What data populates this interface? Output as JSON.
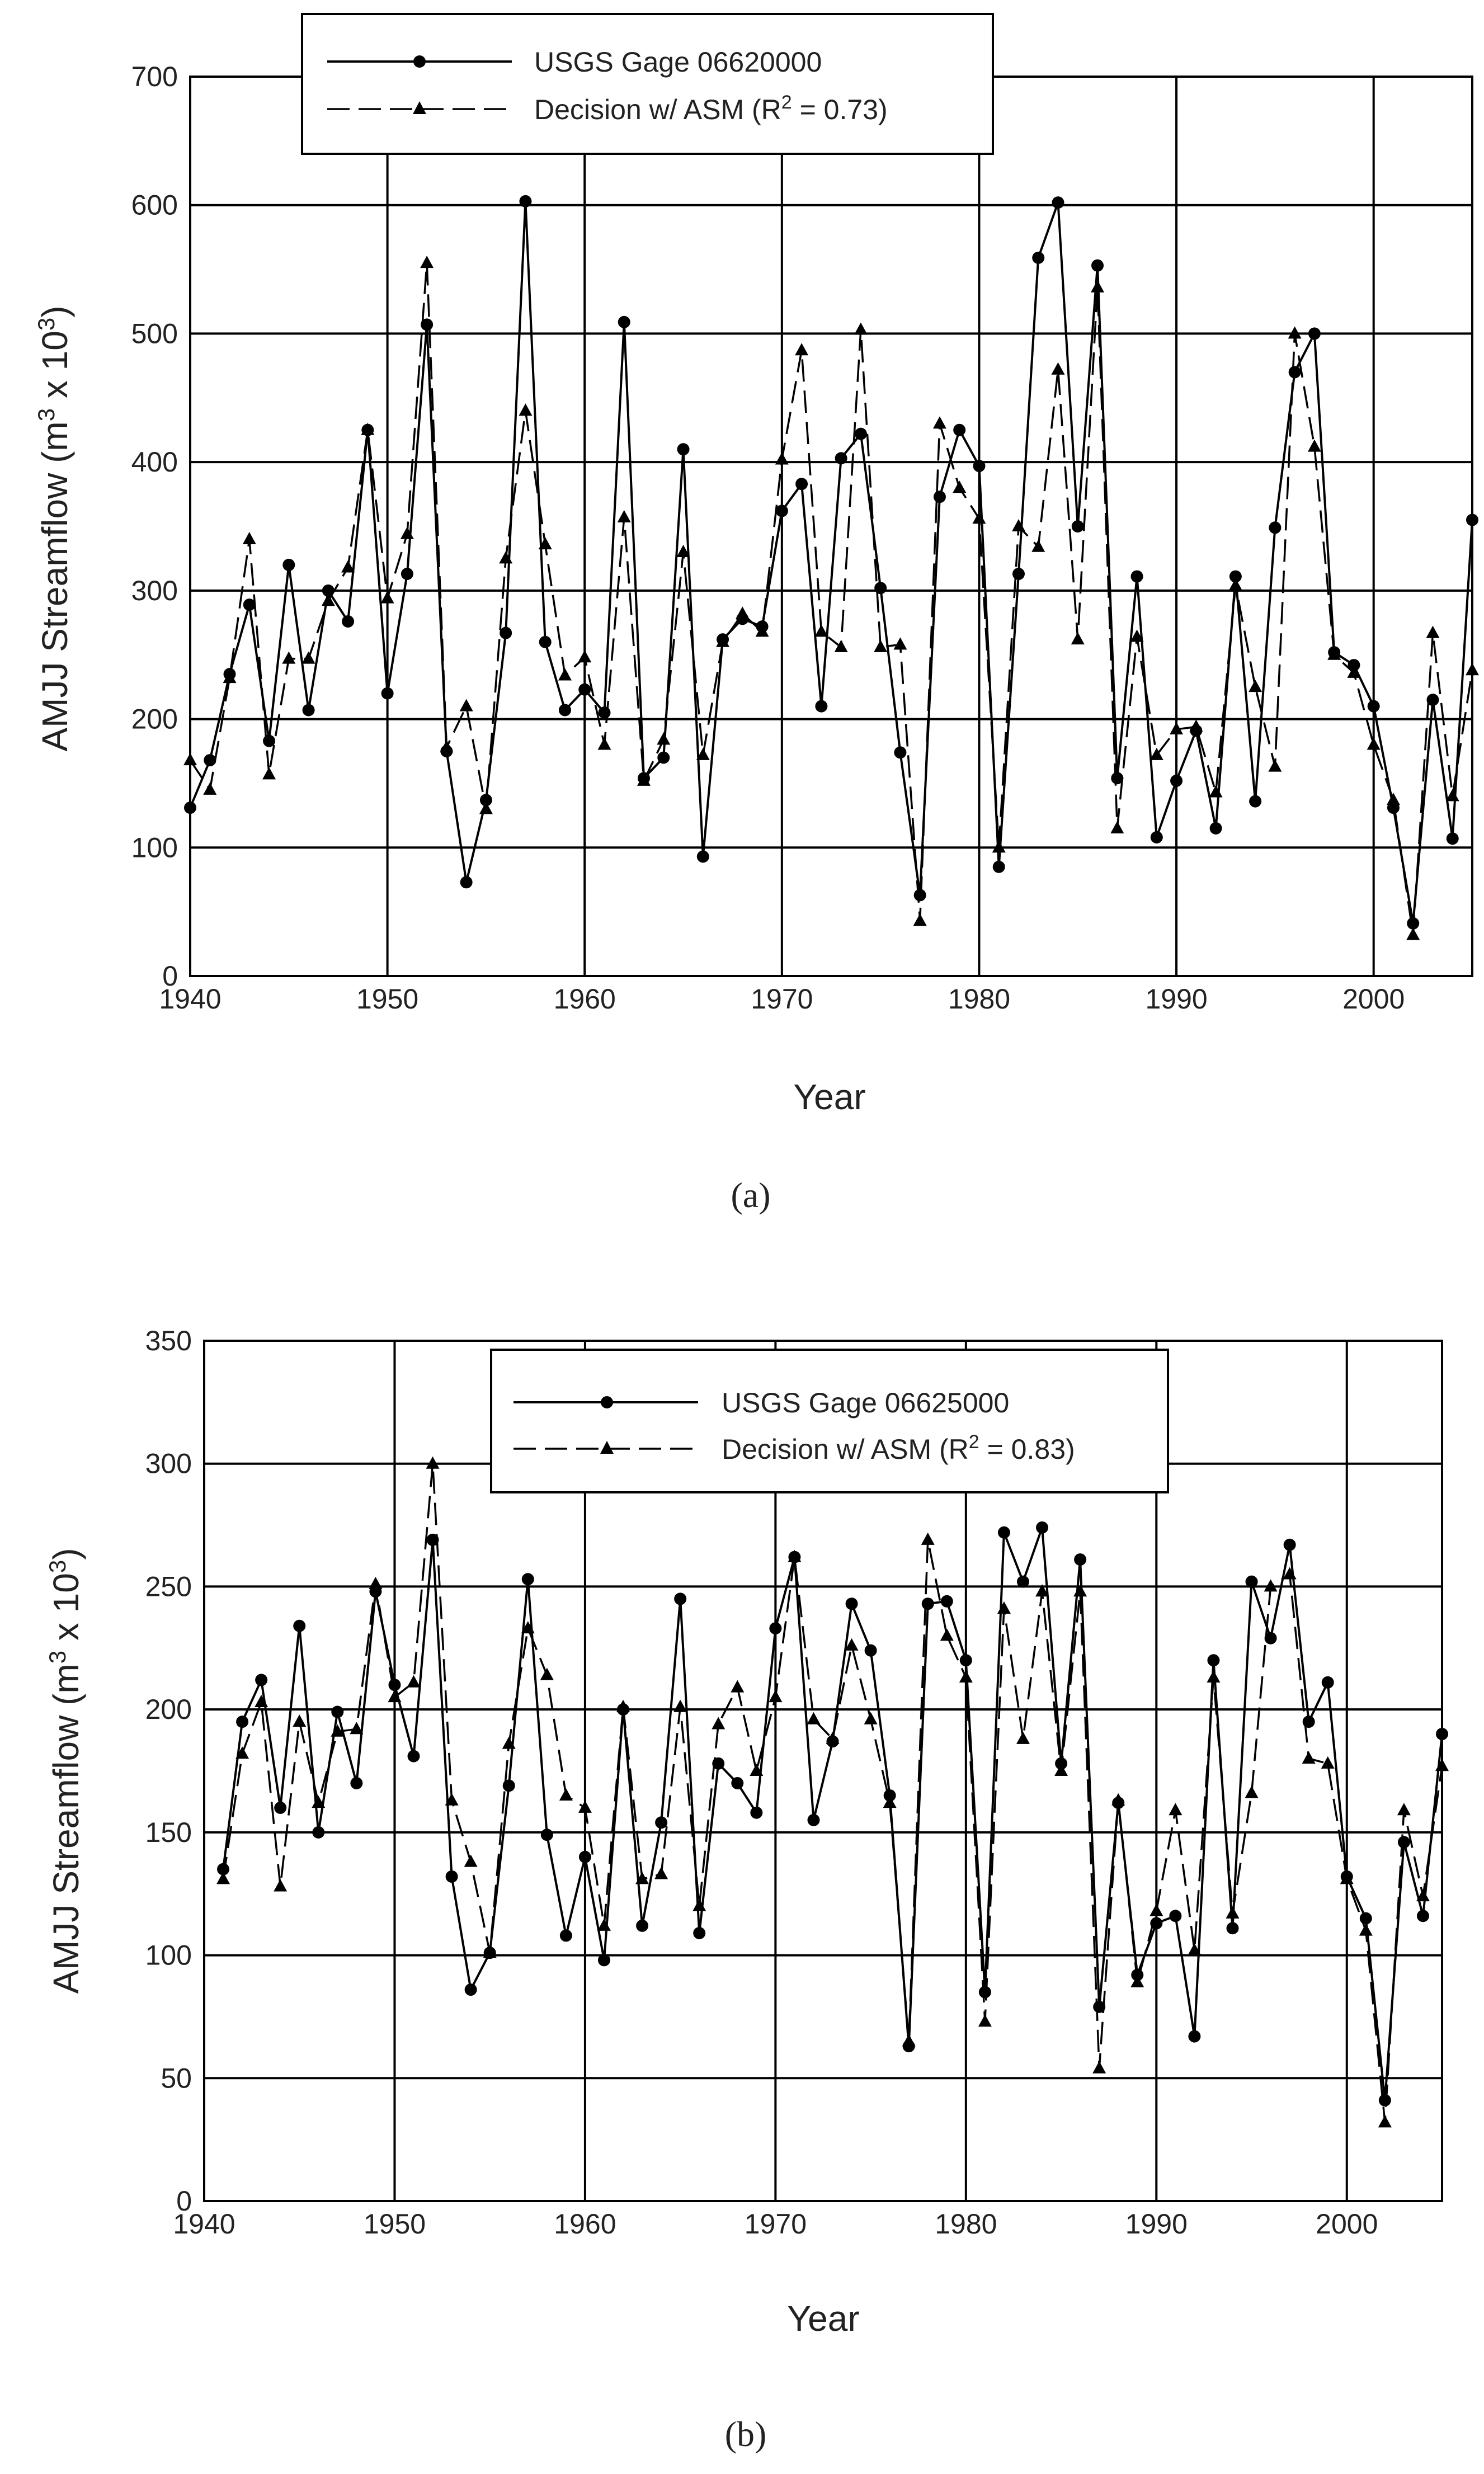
{
  "chart_data": [
    {
      "type": "line",
      "caption": "(a)",
      "xlabel": "Year",
      "ylabel": "AMJJ Streamflow (m",
      "ylabel_sup": "3",
      "ylabel_mid": " x 10",
      "ylabel_sup2": "3",
      "ylabel_end": ")",
      "xlim": [
        1940,
        2005
      ],
      "ylim": [
        0,
        700
      ],
      "xticks": [
        1940,
        1950,
        1960,
        1970,
        1980,
        1990,
        2000
      ],
      "yticks": [
        0,
        100,
        200,
        300,
        400,
        500,
        600,
        700
      ],
      "legend_position": "top-center",
      "series": [
        {
          "name": "USGS Gage 06620000",
          "marker": "circle",
          "style": "solid",
          "x": [
            1940,
            1941,
            1942,
            1943,
            1944,
            1945,
            1946,
            1947,
            1948,
            1949,
            1950,
            1951,
            1952,
            1953,
            1954,
            1955,
            1956,
            1957,
            1958,
            1959,
            1960,
            1961,
            1962,
            1963,
            1964,
            1965,
            1966,
            1967,
            1968,
            1969,
            1970,
            1971,
            1972,
            1973,
            1974,
            1975,
            1976,
            1977,
            1978,
            1979,
            1980,
            1981,
            1982,
            1983,
            1984,
            1985,
            1986,
            1987,
            1988,
            1989,
            1990,
            1991,
            1992,
            1993,
            1994,
            1995,
            1996,
            1997,
            1998,
            1999,
            2000,
            2001,
            2002,
            2003,
            2004,
            2005
          ],
          "values": [
            131,
            168,
            235,
            289,
            183,
            320,
            207,
            300,
            276,
            425,
            220,
            313,
            507,
            175,
            73,
            137,
            267,
            603,
            260,
            207,
            223,
            205,
            509,
            154,
            170,
            410,
            93,
            262,
            278,
            272,
            362,
            383,
            210,
            403,
            422,
            302,
            174,
            63,
            373,
            425,
            397,
            85,
            313,
            559,
            602,
            350,
            553,
            154,
            311,
            108,
            152,
            191,
            115,
            311,
            136,
            349,
            470,
            500,
            252,
            242,
            210,
            131,
            41,
            215,
            107,
            355
          ]
        },
        {
          "name": "Decision w/ ASM",
          "name_r2_label": "R",
          "name_r2_sup": "2",
          "name_r2_value": " = 0.73",
          "marker": "triangle",
          "style": "dashed",
          "x": [
            1940,
            1941,
            1942,
            1943,
            1944,
            1945,
            1946,
            1947,
            1948,
            1949,
            1950,
            1951,
            1952,
            1953,
            1954,
            1955,
            1956,
            1957,
            1958,
            1959,
            1960,
            1961,
            1962,
            1963,
            1964,
            1965,
            1966,
            1967,
            1968,
            1969,
            1970,
            1971,
            1972,
            1973,
            1974,
            1975,
            1976,
            1977,
            1978,
            1979,
            1980,
            1981,
            1982,
            1983,
            1984,
            1985,
            1986,
            1987,
            1988,
            1989,
            1990,
            1991,
            1992,
            1993,
            1994,
            1995,
            1996,
            1997,
            1998,
            1999,
            2000,
            2001,
            2002,
            2003,
            2004,
            2005
          ],
          "values": [
            168,
            145,
            232,
            340,
            157,
            247,
            247,
            292,
            318,
            425,
            294,
            344,
            555,
            178,
            210,
            130,
            325,
            440,
            336,
            234,
            248,
            180,
            357,
            152,
            184,
            330,
            172,
            260,
            282,
            268,
            402,
            487,
            268,
            256,
            503,
            256,
            258,
            43,
            430,
            380,
            356,
            100,
            350,
            334,
            472,
            262,
            536,
            115,
            264,
            172,
            192,
            194,
            143,
            304,
            225,
            163,
            500,
            412,
            250,
            236,
            180,
            137,
            32,
            267,
            140,
            238
          ]
        }
      ]
    },
    {
      "type": "line",
      "caption": "(b)",
      "xlabel": "Year",
      "ylabel": "AMJJ Streamflow (m",
      "ylabel_sup": "3",
      "ylabel_mid": " x 10",
      "ylabel_sup2": "3",
      "ylabel_end": ")",
      "xlim": [
        1940,
        2005
      ],
      "ylim": [
        0,
        350
      ],
      "xticks": [
        1940,
        1950,
        1960,
        1970,
        1980,
        1990,
        2000
      ],
      "yticks": [
        0,
        50,
        100,
        150,
        200,
        250,
        300,
        350
      ],
      "legend_position": "top-center",
      "series": [
        {
          "name": "USGS Gage 06625000",
          "marker": "circle",
          "style": "solid",
          "x": [
            1941,
            1942,
            1943,
            1944,
            1945,
            1946,
            1947,
            1948,
            1949,
            1950,
            1951,
            1952,
            1953,
            1954,
            1955,
            1956,
            1957,
            1958,
            1959,
            1960,
            1961,
            1962,
            1963,
            1964,
            1965,
            1966,
            1967,
            1968,
            1969,
            1970,
            1971,
            1972,
            1973,
            1974,
            1975,
            1976,
            1977,
            1978,
            1979,
            1980,
            1981,
            1982,
            1983,
            1984,
            1985,
            1986,
            1987,
            1988,
            1989,
            1990,
            1991,
            1992,
            1993,
            1994,
            1995,
            1996,
            1997,
            1998,
            1999,
            2000,
            2001,
            2002,
            2003,
            2004,
            2005
          ],
          "values": [
            135,
            195,
            212,
            160,
            234,
            150,
            199,
            170,
            248,
            210,
            181,
            269,
            132,
            86,
            101,
            169,
            253,
            149,
            108,
            140,
            98,
            200,
            112,
            154,
            245,
            109,
            178,
            170,
            158,
            233,
            262,
            155,
            187,
            243,
            224,
            165,
            63,
            243,
            244,
            220,
            85,
            272,
            252,
            274,
            178,
            261,
            79,
            162,
            92,
            113,
            116,
            67,
            220,
            111,
            252,
            229,
            267,
            195,
            211,
            132,
            115,
            41,
            146,
            116,
            190
          ]
        },
        {
          "name": "Decision w/ ASM",
          "name_r2_label": "R",
          "name_r2_sup": "2",
          "name_r2_value": " = 0.83",
          "marker": "triangle",
          "style": "dashed",
          "x": [
            1941,
            1942,
            1943,
            1944,
            1945,
            1946,
            1947,
            1948,
            1949,
            1950,
            1951,
            1952,
            1953,
            1954,
            1955,
            1956,
            1957,
            1958,
            1959,
            1960,
            1961,
            1962,
            1963,
            1964,
            1965,
            1966,
            1967,
            1968,
            1969,
            1970,
            1971,
            1972,
            1973,
            1974,
            1975,
            1976,
            1977,
            1978,
            1979,
            1980,
            1981,
            1982,
            1983,
            1984,
            1985,
            1986,
            1987,
            1988,
            1989,
            1990,
            1991,
            1992,
            1993,
            1994,
            1995,
            1996,
            1997,
            1998,
            1999,
            2000,
            2001,
            2002,
            2003,
            2004,
            2005
          ],
          "values": [
            131,
            182,
            203,
            128,
            195,
            162,
            191,
            192,
            251,
            205,
            211,
            300,
            163,
            138,
            101,
            186,
            233,
            214,
            165,
            160,
            112,
            201,
            131,
            133,
            201,
            120,
            194,
            209,
            175,
            205,
            262,
            196,
            188,
            226,
            196,
            162,
            65,
            269,
            230,
            213,
            73,
            241,
            188,
            248,
            175,
            248,
            54,
            163,
            89,
            118,
            159,
            102,
            213,
            117,
            166,
            250,
            255,
            180,
            178,
            131,
            110,
            32,
            159,
            124,
            177
          ]
        }
      ]
    }
  ]
}
